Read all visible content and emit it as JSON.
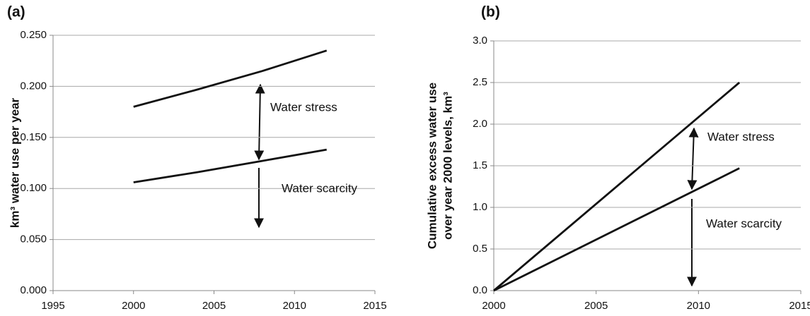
{
  "chart_data": [
    {
      "type": "line",
      "panel": "(a)",
      "ylabel": [
        "km³ water use per year"
      ],
      "x": [
        2000,
        2004,
        2008,
        2012
      ],
      "series": [
        {
          "color": "#111111",
          "values": [
            0.18,
            0.197,
            0.215,
            0.235
          ]
        },
        {
          "color": "#111111",
          "values": [
            0.106,
            0.116,
            0.127,
            0.138
          ]
        }
      ],
      "xlim": [
        1995,
        2015
      ],
      "xticks": [
        1995,
        2000,
        2005,
        2010,
        2015
      ],
      "ylim": [
        0,
        0.25
      ],
      "yticks": [
        {
          "value": 0,
          "label": "0.000"
        },
        {
          "value": 0.05,
          "label": "0.050"
        },
        {
          "value": 0.1,
          "label": "0.100"
        },
        {
          "value": 0.15,
          "label": "0.150"
        },
        {
          "value": 0.2,
          "label": "0.200"
        },
        {
          "value": 0.25,
          "label": "0.250"
        }
      ],
      "grid": true,
      "annotations": [
        "Water stress",
        "Water scarcity"
      ]
    },
    {
      "type": "line",
      "panel": "(b)",
      "ylabel": [
        "Cumulative excess water use",
        "over year 2000 levels, km³"
      ],
      "x": [
        2000,
        2012
      ],
      "series": [
        {
          "color": "#111111",
          "values": [
            0,
            2.5
          ]
        },
        {
          "color": "#111111",
          "values": [
            0,
            1.47
          ]
        }
      ],
      "xlim": [
        2000,
        2015
      ],
      "xticks": [
        2000,
        2005,
        2010,
        2015
      ],
      "ylim": [
        0,
        3
      ],
      "yticks": [
        {
          "value": 0,
          "label": "0.0"
        },
        0.5,
        {
          "value": 1,
          "label": "1.0"
        },
        1.5,
        {
          "value": 2,
          "label": "2.0"
        },
        2.5,
        {
          "value": 3,
          "label": "3.0"
        }
      ],
      "grid": true,
      "annotations": [
        "Water stress",
        "Water scarcity"
      ]
    }
  ]
}
